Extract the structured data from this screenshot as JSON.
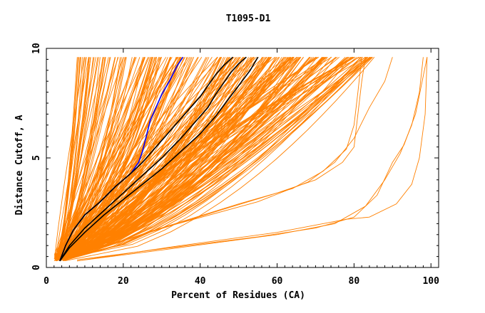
{
  "chart_data": {
    "type": "line",
    "title": "T1095-D1",
    "xlabel": "Percent of Residues (CA)",
    "ylabel": "Distance Cutoff, A",
    "xlim": [
      0,
      102
    ],
    "ylim": [
      0,
      10
    ],
    "x_ticks": [
      0,
      20,
      40,
      60,
      80,
      100
    ],
    "y_ticks": [
      0,
      5,
      10
    ],
    "x_tick_labels": [
      "0",
      "20",
      "40",
      "60",
      "80",
      "100"
    ],
    "y_tick_labels": [
      "0",
      "5",
      "10"
    ],
    "grid": false,
    "colors": {
      "bundle": "#ff8000",
      "highlight_black": "#000000",
      "highlight_blue": "#0000ff"
    },
    "bundle_description_count": 260,
    "series": [
      {
        "color": "#0000ff",
        "x": [
          3.5,
          5,
          7,
          10,
          14,
          18,
          22,
          24,
          25,
          26,
          27,
          28.5,
          30,
          32,
          34,
          35.5
        ],
        "y": [
          0.3,
          1.0,
          1.7,
          2.4,
          3.0,
          3.7,
          4.3,
          4.8,
          5.3,
          6.0,
          6.7,
          7.3,
          7.9,
          8.5,
          9.2,
          9.6
        ]
      },
      {
        "color": "#000000",
        "x": [
          3.5,
          5,
          7,
          10,
          14,
          18,
          22,
          25,
          28,
          31,
          34,
          37,
          40,
          42,
          44,
          46,
          48.5
        ],
        "y": [
          0.3,
          1.0,
          1.7,
          2.4,
          3.0,
          3.7,
          4.3,
          4.8,
          5.4,
          6.0,
          6.6,
          7.2,
          7.8,
          8.3,
          8.8,
          9.2,
          9.6
        ]
      },
      {
        "color": "#000000",
        "x": [
          3.5,
          6,
          10,
          15,
          20,
          25,
          30,
          35,
          39,
          42,
          44,
          46,
          48,
          50,
          52
        ],
        "y": [
          0.3,
          1.0,
          1.8,
          2.6,
          3.4,
          4.2,
          5.0,
          5.9,
          6.7,
          7.3,
          7.9,
          8.4,
          8.9,
          9.3,
          9.6
        ]
      },
      {
        "color": "#000000",
        "x": [
          3.5,
          6,
          10,
          15,
          20,
          25,
          30,
          35,
          40,
          44,
          47,
          50,
          53,
          55
        ],
        "y": [
          0.3,
          0.9,
          1.6,
          2.4,
          3.1,
          3.8,
          4.5,
          5.3,
          6.1,
          6.9,
          7.6,
          8.3,
          9.0,
          9.6
        ]
      }
    ]
  }
}
